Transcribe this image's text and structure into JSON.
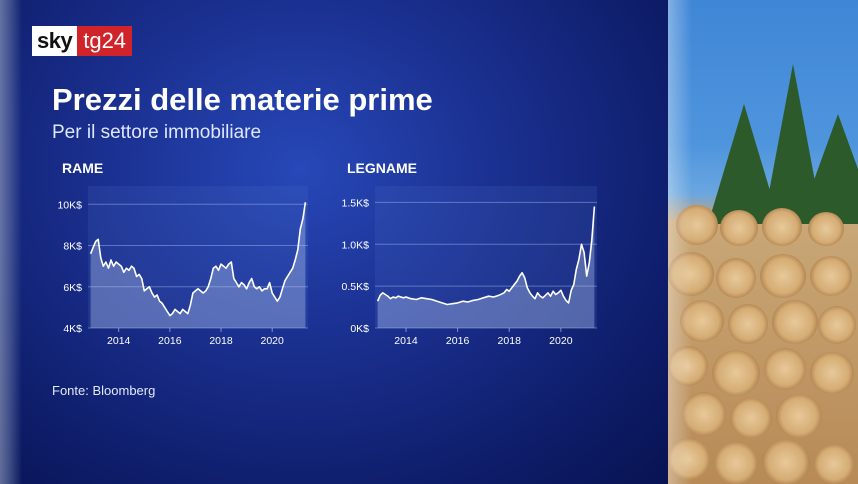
{
  "logo": {
    "sky": "sky",
    "tg": "tg24"
  },
  "title": "Prezzi delle materie prime",
  "subtitle": "Per il settore immobiliare",
  "source": "Fonte: Bloomberg",
  "colors": {
    "accent_red": "#d1232a",
    "line": "#ffffff",
    "area": "rgba(190,205,240,0.35)"
  },
  "chart_data": [
    {
      "type": "area",
      "title": "RAME",
      "xlabel": "",
      "ylabel": "",
      "ylim": [
        4000,
        10500
      ],
      "xlim": [
        2012.8,
        2021.4
      ],
      "yticks": [
        4000,
        6000,
        8000,
        10000
      ],
      "ytick_labels": [
        "4K$",
        "6K$",
        "8K$",
        "10K$"
      ],
      "xticks": [
        2014,
        2016,
        2018,
        2020
      ],
      "xtick_labels": [
        "2014",
        "2016",
        "2018",
        "2020"
      ],
      "grid": "horizontal",
      "x": [
        2012.9,
        2013.0,
        2013.1,
        2013.2,
        2013.3,
        2013.4,
        2013.5,
        2013.6,
        2013.7,
        2013.8,
        2013.9,
        2014.0,
        2014.1,
        2014.2,
        2014.3,
        2014.4,
        2014.5,
        2014.6,
        2014.7,
        2014.8,
        2014.9,
        2015.0,
        2015.1,
        2015.2,
        2015.3,
        2015.4,
        2015.5,
        2015.6,
        2015.7,
        2015.8,
        2015.9,
        2016.0,
        2016.1,
        2016.2,
        2016.3,
        2016.4,
        2016.5,
        2016.6,
        2016.7,
        2016.8,
        2016.9,
        2017.0,
        2017.1,
        2017.2,
        2017.3,
        2017.4,
        2017.5,
        2017.6,
        2017.7,
        2017.8,
        2017.9,
        2018.0,
        2018.1,
        2018.2,
        2018.3,
        2018.4,
        2018.5,
        2018.6,
        2018.7,
        2018.8,
        2018.9,
        2019.0,
        2019.1,
        2019.2,
        2019.3,
        2019.4,
        2019.5,
        2019.6,
        2019.7,
        2019.8,
        2019.9,
        2020.0,
        2020.1,
        2020.2,
        2020.3,
        2020.4,
        2020.5,
        2020.6,
        2020.7,
        2020.8,
        2020.9,
        2021.0,
        2021.1,
        2021.2,
        2021.3
      ],
      "values": [
        7600,
        7900,
        8200,
        8300,
        7400,
        7000,
        7200,
        6900,
        7300,
        7000,
        7200,
        7100,
        7000,
        6700,
        6900,
        6800,
        7000,
        6900,
        6500,
        6600,
        6400,
        5800,
        5900,
        6000,
        5700,
        5500,
        5600,
        5300,
        5200,
        5000,
        4800,
        4600,
        4700,
        4900,
        4800,
        4700,
        4900,
        4800,
        4700,
        5100,
        5700,
        5800,
        5900,
        5800,
        5700,
        5800,
        6000,
        6400,
        6900,
        7000,
        6800,
        7100,
        7000,
        6900,
        7100,
        7200,
        6400,
        6200,
        6000,
        6200,
        6100,
        5900,
        6200,
        6400,
        6000,
        5900,
        6000,
        5800,
        5900,
        5900,
        6200,
        5700,
        5500,
        5300,
        5500,
        5900,
        6300,
        6500,
        6700,
        6900,
        7300,
        7800,
        8800,
        9300,
        10100
      ]
    },
    {
      "type": "area",
      "title": "LEGNAME",
      "xlabel": "",
      "ylabel": "",
      "ylim": [
        0,
        1600
      ],
      "xlim": [
        2012.8,
        2021.4
      ],
      "yticks": [
        0,
        500,
        1000,
        1500
      ],
      "ytick_labels": [
        "0K$",
        "0.5K$",
        "1.0K$",
        "1.5K$"
      ],
      "xticks": [
        2014,
        2016,
        2018,
        2020
      ],
      "xtick_labels": [
        "2014",
        "2016",
        "2018",
        "2020"
      ],
      "grid": "horizontal",
      "x": [
        2012.9,
        2013.0,
        2013.1,
        2013.2,
        2013.3,
        2013.4,
        2013.5,
        2013.6,
        2013.7,
        2013.8,
        2013.9,
        2014.0,
        2014.2,
        2014.4,
        2014.6,
        2014.8,
        2015.0,
        2015.2,
        2015.4,
        2015.6,
        2015.8,
        2016.0,
        2016.2,
        2016.4,
        2016.6,
        2016.8,
        2017.0,
        2017.2,
        2017.4,
        2017.6,
        2017.8,
        2017.9,
        2018.0,
        2018.1,
        2018.2,
        2018.3,
        2018.4,
        2018.5,
        2018.6,
        2018.7,
        2018.8,
        2018.9,
        2019.0,
        2019.1,
        2019.2,
        2019.3,
        2019.4,
        2019.5,
        2019.6,
        2019.7,
        2019.8,
        2019.9,
        2020.0,
        2020.1,
        2020.2,
        2020.3,
        2020.4,
        2020.5,
        2020.6,
        2020.7,
        2020.8,
        2020.9,
        2021.0,
        2021.1,
        2021.2,
        2021.3
      ],
      "values": [
        320,
        390,
        420,
        400,
        380,
        350,
        370,
        360,
        380,
        370,
        360,
        370,
        350,
        340,
        360,
        350,
        340,
        320,
        300,
        280,
        290,
        300,
        320,
        310,
        330,
        340,
        360,
        380,
        370,
        390,
        420,
        460,
        440,
        480,
        520,
        560,
        620,
        660,
        600,
        480,
        420,
        380,
        350,
        420,
        380,
        360,
        390,
        420,
        380,
        440,
        400,
        420,
        450,
        380,
        330,
        300,
        450,
        520,
        700,
        820,
        1000,
        900,
        620,
        780,
        1050,
        1450
      ]
    }
  ]
}
